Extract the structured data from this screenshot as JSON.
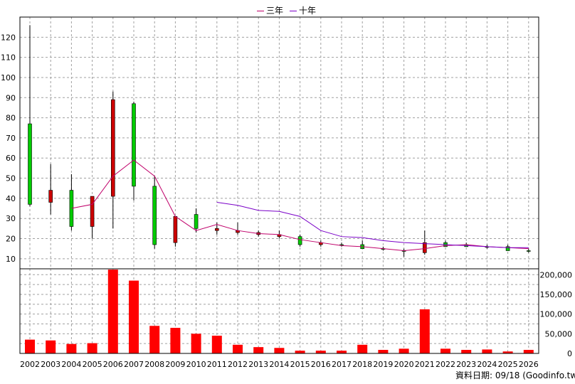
{
  "legend": [
    {
      "name": "三年",
      "color": "#c0006a"
    },
    {
      "name": "十年",
      "color": "#7a00c8"
    }
  ],
  "source_note": "資料日期: 09/18 (Goodinfo.tw)",
  "chart_data": {
    "type": "candlestick",
    "title": "",
    "grid": true,
    "legend_position": "top-center",
    "categories": [
      "2002",
      "2003",
      "2004",
      "2005",
      "2006",
      "2007",
      "2008",
      "2009",
      "2010",
      "2011",
      "2012",
      "2013",
      "2014",
      "2015",
      "2016",
      "2017",
      "2018",
      "2019",
      "2020",
      "2021",
      "2022",
      "2023",
      "2024",
      "2025",
      "2026"
    ],
    "price_axis": {
      "ylim": [
        5,
        130
      ],
      "ticks": [
        10,
        20,
        30,
        40,
        50,
        60,
        70,
        80,
        90,
        100,
        110,
        120
      ]
    },
    "volume_axis": {
      "ylim": [
        0,
        215000
      ],
      "ticks": [
        0,
        50000,
        100000,
        150000,
        200000
      ],
      "tick_labels": [
        "0",
        "50,000",
        "100,000",
        "150,000",
        "200,000"
      ]
    },
    "candles": [
      {
        "year": "2002",
        "open": 37,
        "close": 77,
        "high": 126,
        "low": 36
      },
      {
        "year": "2003",
        "open": 44,
        "close": 38,
        "high": 57,
        "low": 32
      },
      {
        "year": "2004",
        "open": 26,
        "close": 44,
        "high": 52,
        "low": 24
      },
      {
        "year": "2005",
        "open": 41,
        "close": 26,
        "high": 41,
        "low": 20
      },
      {
        "year": "2006",
        "open": 89,
        "close": 41,
        "high": 93,
        "low": 25
      },
      {
        "year": "2007",
        "open": 46,
        "close": 87,
        "high": 88,
        "low": 39
      },
      {
        "year": "2008",
        "open": 17,
        "close": 46,
        "high": 51,
        "low": 15
      },
      {
        "year": "2009",
        "open": 31,
        "close": 18,
        "high": 31,
        "low": 16
      },
      {
        "year": "2010",
        "open": 25,
        "close": 32,
        "high": 35,
        "low": 23
      },
      {
        "year": "2011",
        "open": 25,
        "close": 24,
        "high": 28,
        "low": 22
      },
      {
        "year": "2012",
        "open": 24,
        "close": 23,
        "high": 28,
        "low": 22
      },
      {
        "year": "2013",
        "open": 23,
        "close": 22,
        "high": 24,
        "low": 21
      },
      {
        "year": "2014",
        "open": 22,
        "close": 21,
        "high": 24,
        "low": 20
      },
      {
        "year": "2015",
        "open": 17,
        "close": 21,
        "high": 22,
        "low": 16
      },
      {
        "year": "2016",
        "open": 18,
        "close": 17,
        "high": 19,
        "low": 16
      },
      {
        "year": "2017",
        "open": 17,
        "close": 17,
        "high": 18,
        "low": 16
      },
      {
        "year": "2018",
        "open": 15,
        "close": 17,
        "high": 19,
        "low": 15
      },
      {
        "year": "2019",
        "open": 15,
        "close": 15,
        "high": 16,
        "low": 14
      },
      {
        "year": "2020",
        "open": 14,
        "close": 14,
        "high": 15,
        "low": 11
      },
      {
        "year": "2021",
        "open": 18,
        "close": 13,
        "high": 24,
        "low": 12
      },
      {
        "year": "2022",
        "open": 16,
        "close": 18,
        "high": 19,
        "low": 16
      },
      {
        "year": "2023",
        "open": 16,
        "close": 17,
        "high": 18,
        "low": 16
      },
      {
        "year": "2024",
        "open": 16,
        "close": 16,
        "high": 17,
        "low": 15
      },
      {
        "year": "2025",
        "open": 14,
        "close": 16,
        "high": 17,
        "low": 14
      },
      {
        "year": "2026",
        "open": 14,
        "close": 14,
        "high": 15,
        "low": 13
      }
    ],
    "volume": [
      35000,
      33000,
      24000,
      26000,
      213000,
      185000,
      70000,
      65000,
      50000,
      45000,
      22000,
      16000,
      14000,
      7000,
      7000,
      7000,
      22000,
      9000,
      12000,
      112000,
      12000,
      9000,
      10000,
      5000,
      9000
    ],
    "series": [
      {
        "name": "三年",
        "x": [
          "2004",
          "2005",
          "2006",
          "2007",
          "2008",
          "2009",
          "2010",
          "2011",
          "2012",
          "2013",
          "2014",
          "2015",
          "2016",
          "2017",
          "2018",
          "2019",
          "2020",
          "2021",
          "2022",
          "2023",
          "2024",
          "2025",
          "2026"
        ],
        "values": [
          35,
          37,
          51,
          59,
          51,
          31,
          24,
          27,
          24,
          22.5,
          22,
          19.5,
          18,
          16.5,
          16,
          15,
          14,
          15,
          16.5,
          17,
          16,
          15.5,
          15
        ]
      },
      {
        "name": "十年",
        "x": [
          "2011",
          "2012",
          "2013",
          "2014",
          "2015",
          "2016",
          "2017",
          "2018",
          "2019",
          "2020",
          "2021",
          "2022",
          "2023",
          "2024",
          "2025",
          "2026"
        ],
        "values": [
          38,
          36.5,
          34,
          33.5,
          31,
          24,
          21,
          20.5,
          19,
          18,
          17.5,
          17,
          16.5,
          16,
          15.5,
          15.5
        ]
      }
    ],
    "colors": {
      "up": "#00cc00",
      "down": "#cc0000",
      "volume": "#ff0000",
      "grid": "#a0a0a0"
    }
  }
}
